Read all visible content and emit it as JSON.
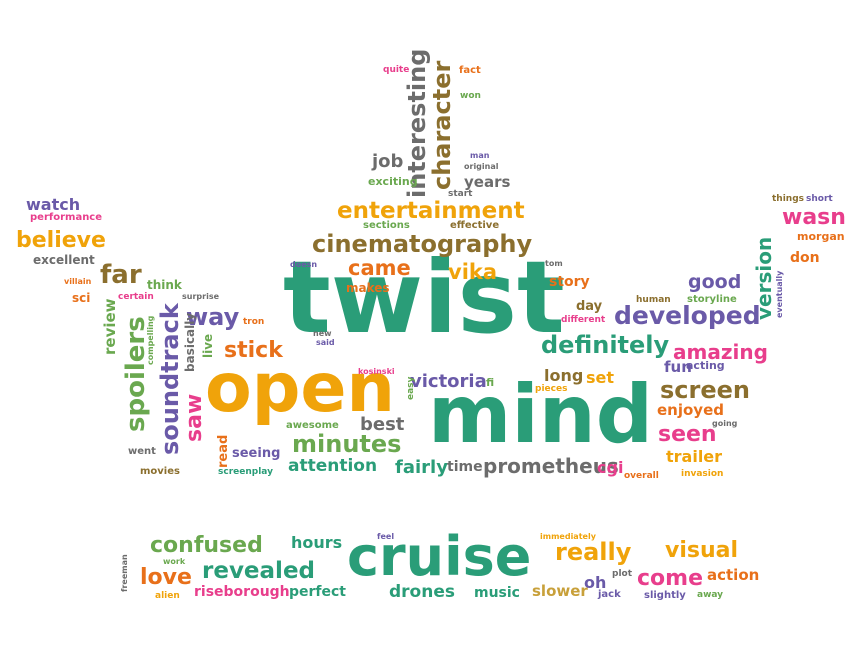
{
  "words": [
    {
      "text": "twist",
      "cls": "c0"
    },
    {
      "text": "mind",
      "cls": "c0"
    },
    {
      "text": "open",
      "cls": "c1"
    },
    {
      "text": "cruise",
      "cls": "c0"
    },
    {
      "text": "cinematography",
      "cls": "c4"
    },
    {
      "text": "entertainment",
      "cls": "c1"
    },
    {
      "text": "developed",
      "cls": "c3"
    },
    {
      "text": "definitely",
      "cls": "c0"
    },
    {
      "text": "amazing",
      "cls": "c2"
    },
    {
      "text": "screen",
      "cls": "c4"
    },
    {
      "text": "seen",
      "cls": "c2"
    },
    {
      "text": "spoilers",
      "cls": "c7"
    },
    {
      "text": "soundtrack",
      "cls": "c3"
    },
    {
      "text": "interesting",
      "cls": "c6"
    },
    {
      "text": "character",
      "cls": "c4"
    },
    {
      "text": "believe",
      "cls": "c1"
    },
    {
      "text": "confused",
      "cls": "c7"
    },
    {
      "text": "revealed",
      "cls": "c0"
    },
    {
      "text": "really",
      "cls": "c1"
    },
    {
      "text": "visual",
      "cls": "c1"
    },
    {
      "text": "come",
      "cls": "c2"
    },
    {
      "text": "love",
      "cls": "c5"
    },
    {
      "text": "came",
      "cls": "c5"
    },
    {
      "text": "vika",
      "cls": "c1"
    },
    {
      "text": "way",
      "cls": "c3"
    },
    {
      "text": "stick",
      "cls": "c5"
    },
    {
      "text": "far",
      "cls": "c4"
    },
    {
      "text": "minutes",
      "cls": "c7"
    },
    {
      "text": "attention",
      "cls": "c0"
    },
    {
      "text": "prometheus",
      "cls": "c6"
    },
    {
      "text": "victoria",
      "cls": "c3"
    },
    {
      "text": "saw",
      "cls": "c2"
    },
    {
      "text": "version",
      "cls": "c0"
    },
    {
      "text": "wasn",
      "cls": "c2"
    },
    {
      "text": "watch",
      "cls": "c3"
    },
    {
      "text": "good",
      "cls": "c3"
    },
    {
      "text": "enjoyed",
      "cls": "c5"
    },
    {
      "text": "trailer",
      "cls": "c1"
    },
    {
      "text": "fairly",
      "cls": "c0"
    },
    {
      "text": "best",
      "cls": "c6"
    },
    {
      "text": "years",
      "cls": "c6"
    },
    {
      "text": "job",
      "cls": "c6"
    },
    {
      "text": "review",
      "cls": "c7"
    },
    {
      "text": "hours",
      "cls": "c0"
    },
    {
      "text": "drones",
      "cls": "c0"
    },
    {
      "text": "music",
      "cls": "c0"
    },
    {
      "text": "slower",
      "cls": "c8"
    },
    {
      "text": "action",
      "cls": "c5"
    },
    {
      "text": "riseborough",
      "cls": "c2"
    },
    {
      "text": "perfect",
      "cls": "c0"
    },
    {
      "text": "long",
      "cls": "c4"
    },
    {
      "text": "set",
      "cls": "c1"
    },
    {
      "text": "fun",
      "cls": "c3"
    },
    {
      "text": "cgi",
      "cls": "c2"
    },
    {
      "text": "time",
      "cls": "c6"
    },
    {
      "text": "story",
      "cls": "c5"
    },
    {
      "text": "day",
      "cls": "c4"
    },
    {
      "text": "makes",
      "cls": "c5"
    },
    {
      "text": "oh",
      "cls": "c3"
    },
    {
      "text": "don",
      "cls": "c5"
    },
    {
      "text": "excellent",
      "cls": "c6"
    },
    {
      "text": "performance",
      "cls": "c2"
    },
    {
      "text": "think",
      "cls": "c7"
    },
    {
      "text": "sci",
      "cls": "c5"
    },
    {
      "text": "certain",
      "cls": "c2"
    },
    {
      "text": "basically",
      "cls": "c6"
    },
    {
      "text": "seeing",
      "cls": "c3"
    },
    {
      "text": "read",
      "cls": "c5"
    },
    {
      "text": "awesome",
      "cls": "c7"
    },
    {
      "text": "screenplay",
      "cls": "c0"
    },
    {
      "text": "movies",
      "cls": "c4"
    },
    {
      "text": "went",
      "cls": "c6"
    },
    {
      "text": "live",
      "cls": "c7"
    },
    {
      "text": "exciting",
      "cls": "c7"
    },
    {
      "text": "start",
      "cls": "c6"
    },
    {
      "text": "effective",
      "cls": "c4"
    },
    {
      "text": "sections",
      "cls": "c7"
    },
    {
      "text": "original",
      "cls": "c6"
    },
    {
      "text": "man",
      "cls": "c3"
    },
    {
      "text": "quite",
      "cls": "c2"
    },
    {
      "text": "fact",
      "cls": "c5"
    },
    {
      "text": "won",
      "cls": "c7"
    },
    {
      "text": "morgan",
      "cls": "c5"
    },
    {
      "text": "things",
      "cls": "c4"
    },
    {
      "text": "short",
      "cls": "c3"
    },
    {
      "text": "eventually",
      "cls": "c3"
    },
    {
      "text": "storyline",
      "cls": "c7"
    },
    {
      "text": "acting",
      "cls": "c3"
    },
    {
      "text": "human",
      "cls": "c4"
    },
    {
      "text": "different",
      "cls": "c2"
    },
    {
      "text": "pieces",
      "cls": "c1"
    },
    {
      "text": "fi",
      "cls": "c7"
    },
    {
      "text": "easy",
      "cls": "c7"
    },
    {
      "text": "kosinski",
      "cls": "c2"
    },
    {
      "text": "new",
      "cls": "c6"
    },
    {
      "text": "said",
      "cls": "c3"
    },
    {
      "text": "tron",
      "cls": "c5"
    },
    {
      "text": "surprise",
      "cls": "c6"
    },
    {
      "text": "compelling",
      "cls": "c7"
    },
    {
      "text": "villain",
      "cls": "c5"
    },
    {
      "text": "doesn",
      "cls": "c3"
    },
    {
      "text": "tom",
      "cls": "c6"
    },
    {
      "text": "going",
      "cls": "c6"
    },
    {
      "text": "overall",
      "cls": "c5"
    },
    {
      "text": "invasion",
      "cls": "c1"
    },
    {
      "text": "feel",
      "cls": "c3"
    },
    {
      "text": "immediately",
      "cls": "c1"
    },
    {
      "text": "plot",
      "cls": "c6"
    },
    {
      "text": "jack",
      "cls": "c3"
    },
    {
      "text": "slightly",
      "cls": "c3"
    },
    {
      "text": "away",
      "cls": "c7"
    },
    {
      "text": "freeman",
      "cls": "c6"
    },
    {
      "text": "work",
      "cls": "c7"
    },
    {
      "text": "alien",
      "cls": "c1"
    }
  ]
}
